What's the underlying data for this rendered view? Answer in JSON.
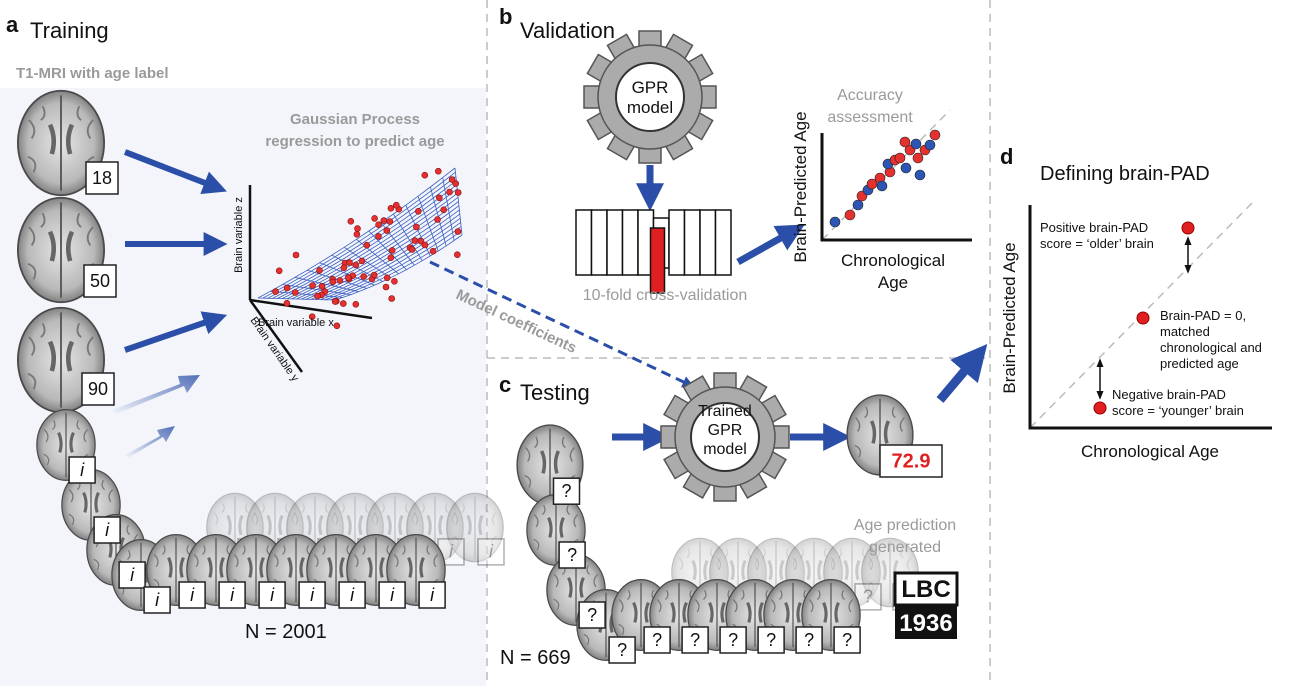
{
  "panel_a": {
    "letter": "a",
    "title": "Training",
    "subtitle": "T1-MRI with age label",
    "age_labels": [
      "18",
      "50",
      "90"
    ],
    "unknown_label": "i",
    "method": [
      "Gaussian Process",
      "regression to predict age"
    ],
    "axes": [
      "Brain variable z",
      "Brain variable x",
      "Brain variable y"
    ],
    "sample_size": "N = 2001",
    "arrow_label": "Model coefficients"
  },
  "panel_b": {
    "letter": "b",
    "title": "Validation",
    "model": [
      "GPR",
      "model"
    ],
    "cv_label": "10-fold cross-validation",
    "assessment": [
      "Accuracy",
      "assessment"
    ],
    "y_axis": "Brain-Predicted Age",
    "x_axis": [
      "Chronological",
      "Age"
    ]
  },
  "panel_c": {
    "letter": "c",
    "title": "Testing",
    "unknown_label": "?",
    "model": [
      "Trained",
      "GPR",
      "model"
    ],
    "prediction": "72.9",
    "prediction_label": [
      "Age prediction",
      "generated"
    ],
    "sample_size": "N = 669",
    "logo": [
      "LBC",
      "1936"
    ]
  },
  "panel_d": {
    "letter": "d",
    "title": "Defining brain-PAD",
    "positive": [
      "Positive brain-PAD",
      "score = ‘older’ brain"
    ],
    "zero": [
      "Brain-PAD = 0,",
      "matched",
      "chronological and",
      "predicted age"
    ],
    "negative": [
      "Negative brain-PAD",
      "score = ‘younger’ brain"
    ],
    "y_axis": "Brain-Predicted Age",
    "x_axis": "Chronological Age"
  }
}
